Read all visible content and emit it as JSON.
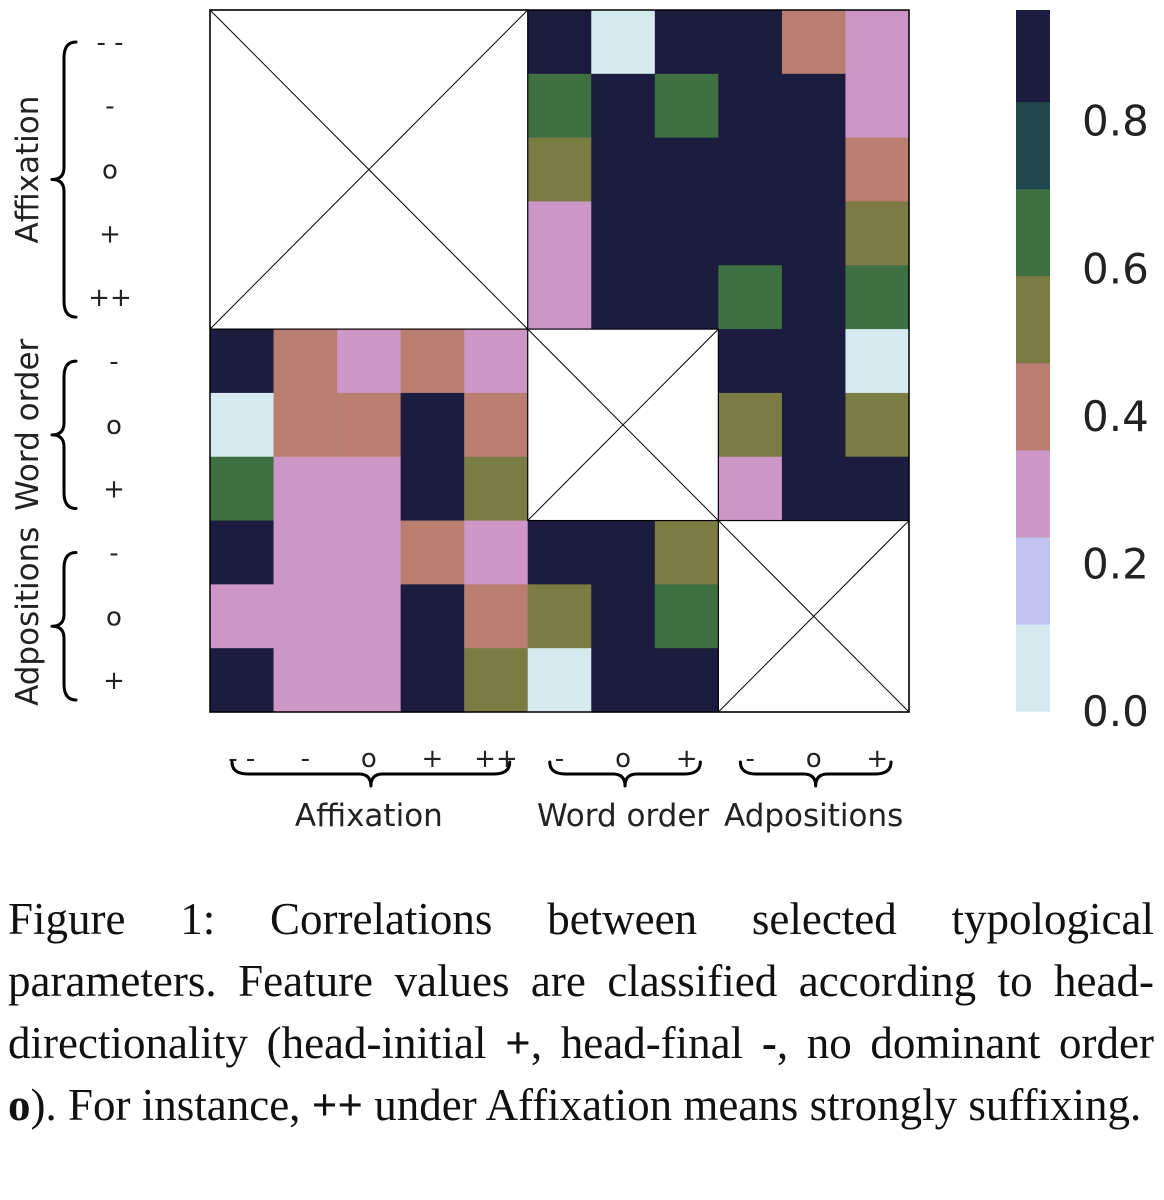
{
  "chart_data": {
    "type": "heatmap",
    "row_groups": [
      {
        "name": "Affixation",
        "ticks": [
          "- -",
          "-",
          "o",
          "+",
          "++"
        ]
      },
      {
        "name": "Word order",
        "ticks": [
          "-",
          "o",
          "+"
        ]
      },
      {
        "name": "Adpositions",
        "ticks": [
          "-",
          "o",
          "+"
        ]
      }
    ],
    "col_groups": [
      {
        "name": "Affixation",
        "ticks": [
          "- -",
          "-",
          "o",
          "+",
          "++"
        ]
      },
      {
        "name": "Word order",
        "ticks": [
          "-",
          "o",
          "+"
        ]
      },
      {
        "name": "Adpositions",
        "ticks": [
          "-",
          "o",
          "+"
        ]
      }
    ],
    "values": [
      [
        null,
        null,
        null,
        null,
        null,
        0.95,
        0.05,
        0.85,
        0.95,
        0.45,
        0.25
      ],
      [
        null,
        null,
        null,
        null,
        null,
        0.65,
        0.85,
        0.65,
        0.85,
        0.85,
        0.35
      ],
      [
        null,
        null,
        null,
        null,
        null,
        0.55,
        0.95,
        0.85,
        0.85,
        0.85,
        0.45
      ],
      [
        null,
        null,
        null,
        null,
        null,
        0.35,
        0.85,
        0.95,
        0.85,
        0.85,
        0.55
      ],
      [
        null,
        null,
        null,
        null,
        null,
        0.25,
        0.95,
        0.95,
        0.65,
        0.95,
        0.65
      ],
      [
        0.95,
        0.45,
        0.25,
        0.45,
        0.25,
        null,
        null,
        null,
        0.95,
        0.95,
        0.05
      ],
      [
        0.05,
        0.45,
        0.45,
        0.85,
        0.45,
        null,
        null,
        null,
        0.55,
        0.85,
        0.55
      ],
      [
        0.65,
        0.25,
        0.35,
        0.95,
        0.55,
        null,
        null,
        null,
        0.35,
        0.95,
        0.95
      ],
      [
        0.95,
        0.35,
        0.25,
        0.45,
        0.25,
        0.95,
        0.95,
        0.55,
        null,
        null,
        null
      ],
      [
        0.35,
        0.35,
        0.25,
        0.85,
        0.45,
        0.55,
        0.85,
        0.65,
        null,
        null,
        null
      ],
      [
        0.85,
        0.35,
        0.35,
        0.85,
        0.55,
        0.05,
        0.95,
        0.95,
        null,
        null,
        null
      ]
    ],
    "colorbar": {
      "range": [
        0.0,
        0.95
      ],
      "ticks": [
        "0.0",
        "0.2",
        "0.4",
        "0.6",
        "0.8"
      ],
      "bins": [
        0.0,
        0.118,
        0.236,
        0.354,
        0.472,
        0.59,
        0.708,
        0.826,
        0.95
      ],
      "colors": [
        "#d4eaee",
        "#c2c3ef",
        "#cc96c7",
        "#b97e70",
        "#7b7c44",
        "#3e7041",
        "#22474f",
        "#1c1c3e"
      ]
    },
    "grid": false,
    "legend": "right"
  },
  "caption": {
    "line1": "Figure 1:  Correlations between selected typological",
    "line2": "parameters.  Feature values are classified according",
    "line3_a": "to head-directionality (head-initial ",
    "line3_b": "+",
    "line3_c": ", head-final ",
    "line3_d": "-",
    "line3_e": ", no",
    "line4_a": "dominant order ",
    "line4_b": "o",
    "line4_c": ").  For instance, ",
    "line4_d": "++",
    "line4_e": " under Affixation",
    "line5": "means strongly suffixing."
  }
}
